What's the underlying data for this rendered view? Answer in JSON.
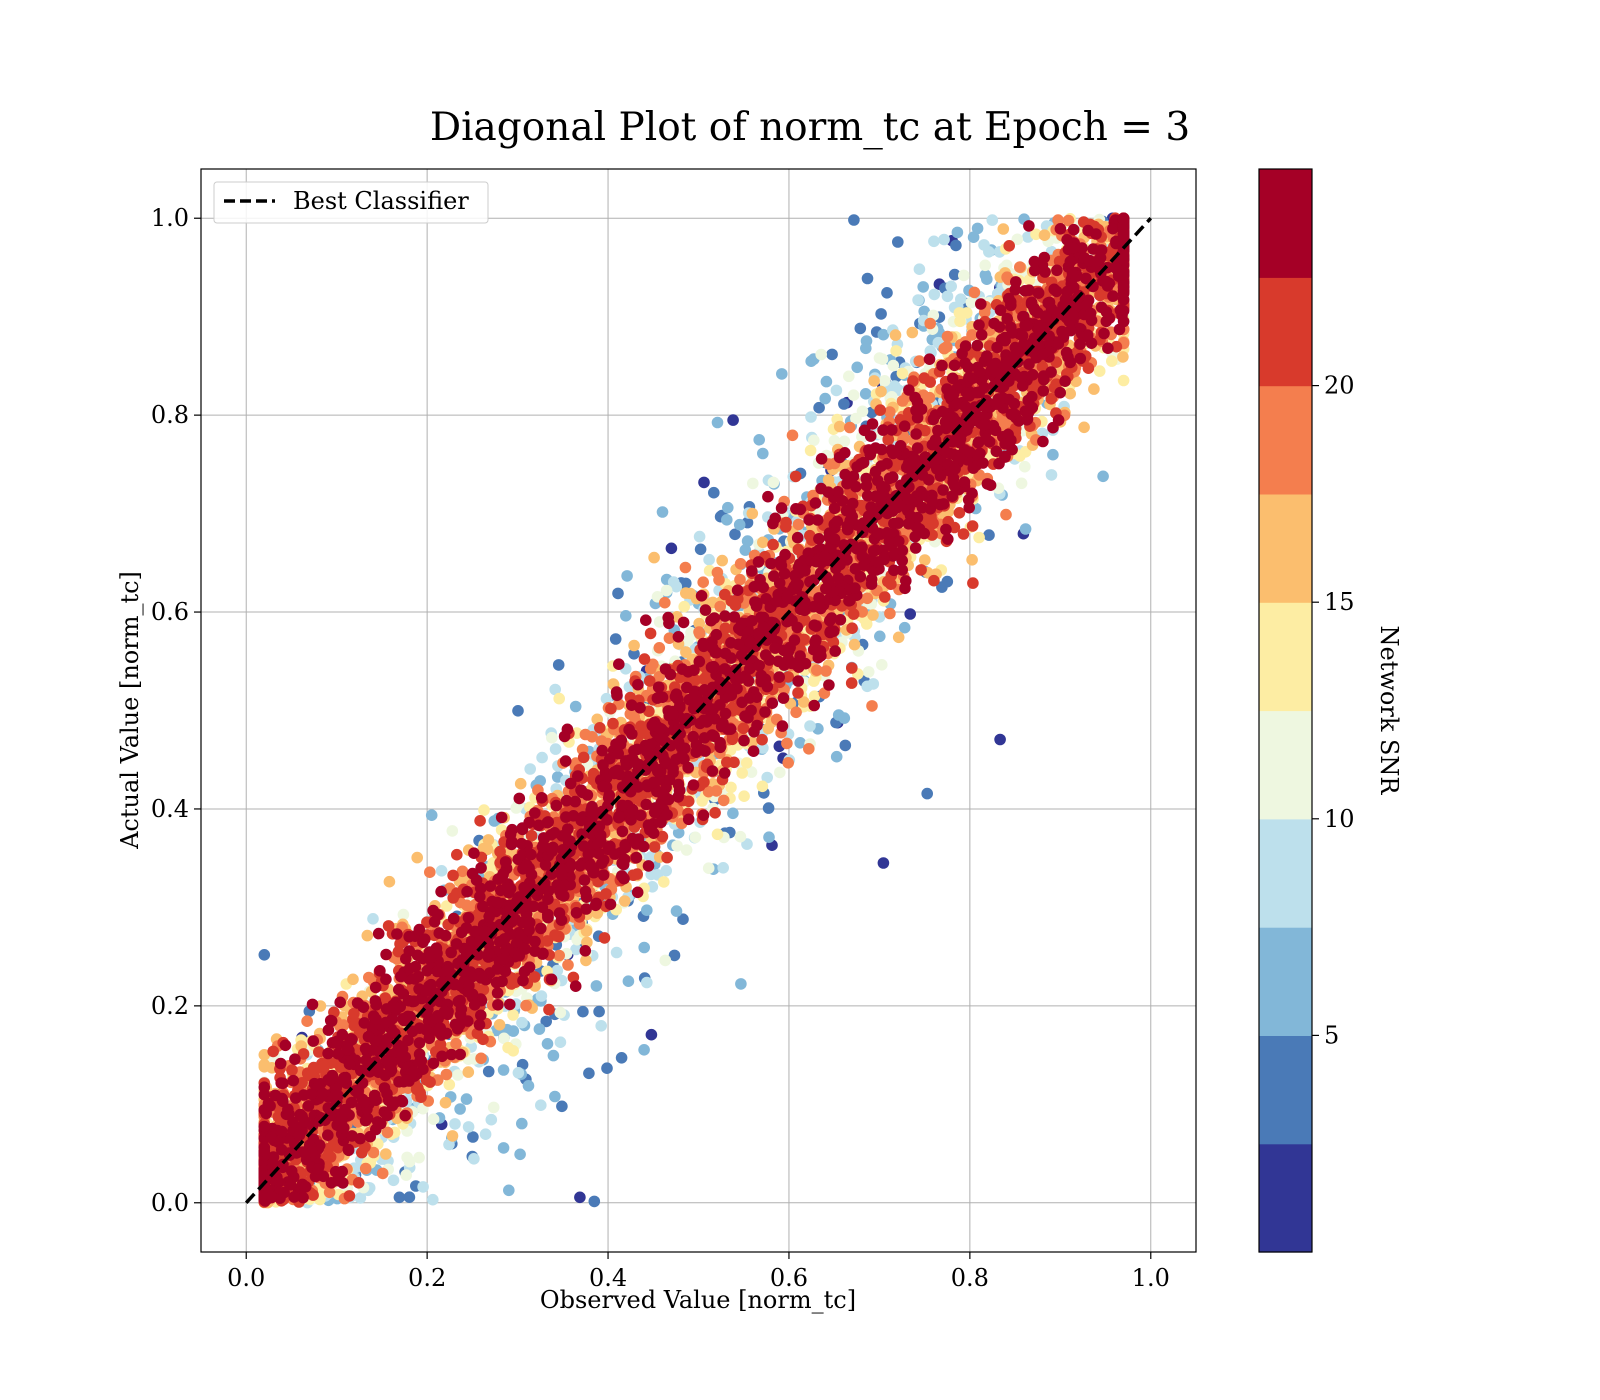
{
  "chart_data": {
    "type": "scatter",
    "title": "Diagonal Plot of norm_tc at Epoch = 3",
    "xlabel": "Observed Value [norm_tc]",
    "ylabel": "Actual Value [norm_tc]",
    "xlim": [
      -0.05,
      1.05
    ],
    "ylim": [
      -0.05,
      1.05
    ],
    "x_ticks": [
      "0.0",
      "0.2",
      "0.4",
      "0.6",
      "0.8",
      "1.0"
    ],
    "y_ticks": [
      "0.0",
      "0.2",
      "0.4",
      "0.6",
      "0.8",
      "1.0"
    ],
    "grid": true,
    "legend": {
      "placement": "upper-left",
      "entries": [
        "Best Classifier"
      ]
    },
    "reference_line": {
      "label": "Best Classifier",
      "style": "dashed",
      "color": "#000000",
      "x": [
        0,
        1
      ],
      "y": [
        0,
        1
      ]
    },
    "colorbar": {
      "label": "Network SNR",
      "range": [
        0,
        25
      ],
      "tick_labels": [
        "5",
        "10",
        "15",
        "20"
      ],
      "tick_values": [
        5,
        10,
        15,
        20
      ],
      "bins": [
        "#313695",
        "#4575b4",
        "#74add1",
        "#abd9e9",
        "#e0f3f8",
        "#ffffbf",
        "#fee090",
        "#fdae61",
        "#f46d43",
        "#d73027"
      ],
      "colors_low_to_high": [
        "#313695",
        "#4a7ab7",
        "#82b7d8",
        "#bde0ec",
        "#eef7e0",
        "#fdeda3",
        "#fbbe6e",
        "#f47e4e",
        "#d83a2c",
        "#a50026"
      ]
    },
    "point_description": "dense cloud of scatter points along the diagonal; high SNR (dark red) near the diagonal, lower SNR (yellow to blue) farther from it; points span x from about 0.02 to 0.97 and y from 0 to 1"
  }
}
